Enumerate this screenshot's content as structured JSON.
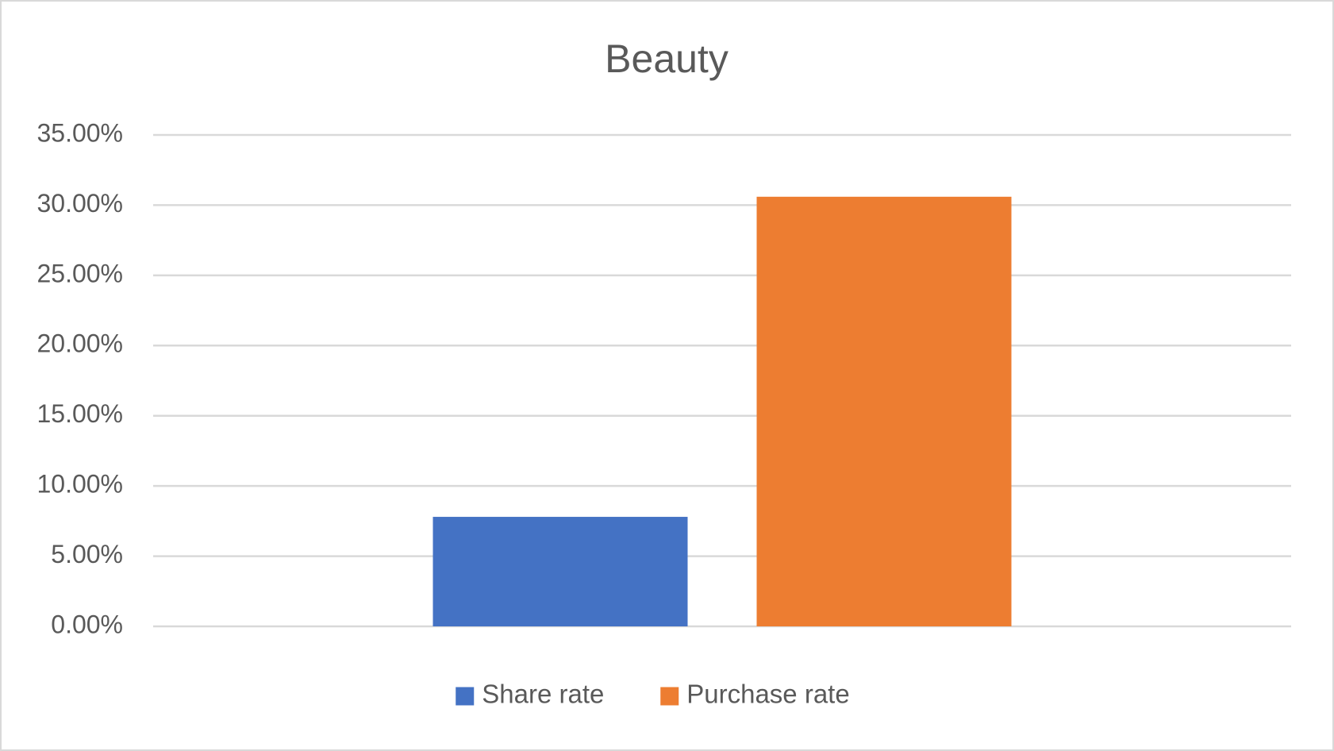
{
  "chart_data": {
    "type": "bar",
    "title": "Beauty",
    "categories": [
      null
    ],
    "series": [
      {
        "name": "Share rate",
        "color": "#4472c4",
        "values": [
          7.8
        ]
      },
      {
        "name": "Purchase rate",
        "color": "#ed7d31",
        "values": [
          30.6
        ]
      }
    ],
    "ylim": [
      0,
      35
    ],
    "yticks": [
      {
        "value": 0,
        "label": "0.00%"
      },
      {
        "value": 5,
        "label": "5.00%"
      },
      {
        "value": 10,
        "label": "10.00%"
      },
      {
        "value": 15,
        "label": "15.00%"
      },
      {
        "value": 20,
        "label": "20.00%"
      },
      {
        "value": 25,
        "label": "25.00%"
      },
      {
        "value": 30,
        "label": "30.00%"
      },
      {
        "value": 35,
        "label": "35.00%"
      }
    ],
    "grid": true,
    "legend": "bottom"
  }
}
